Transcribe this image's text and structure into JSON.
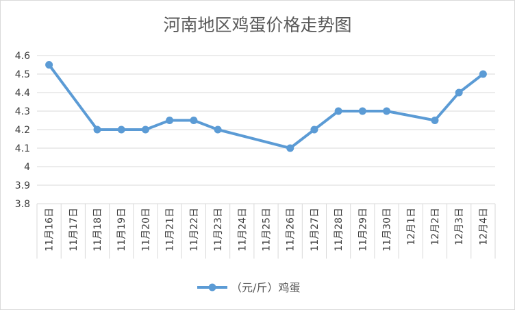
{
  "chart_data": {
    "type": "line",
    "title": "河南地区鸡蛋价格走势图",
    "xlabel": "",
    "ylabel": "",
    "ylim": [
      3.8,
      4.6
    ],
    "y_ticks": [
      "4.6",
      "4.5",
      "4.4",
      "4.3",
      "4.2",
      "4.1",
      "4",
      "3.9",
      "3.8"
    ],
    "categories": [
      "11月16日",
      "11月17日",
      "11月18日",
      "11月19日",
      "11月20日",
      "11月21日",
      "11月22日",
      "11月23日",
      "11月24日",
      "11月25日",
      "11月26日",
      "11月27日",
      "11月28日",
      "11月29日",
      "11月30日",
      "12月1日",
      "12月2日",
      "12月3日",
      "12月4日"
    ],
    "grid": true,
    "legend": "bottom",
    "series": [
      {
        "name": "（元/斤）鸡蛋",
        "color": "#5b9bd5",
        "values": [
          4.55,
          null,
          4.2,
          4.2,
          4.2,
          4.25,
          4.25,
          4.2,
          null,
          null,
          4.1,
          4.2,
          4.3,
          4.3,
          4.3,
          null,
          4.25,
          4.4,
          4.5
        ]
      }
    ]
  }
}
